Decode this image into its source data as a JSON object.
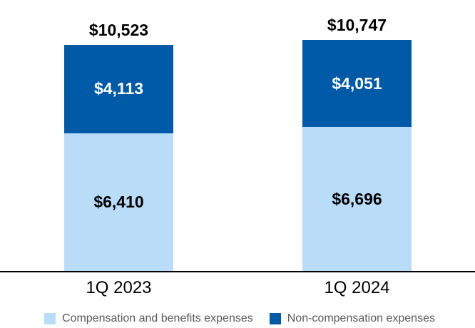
{
  "chart_data": {
    "type": "bar",
    "stacked": true,
    "title": "",
    "xlabel": "",
    "ylabel": "",
    "ylim": [
      0,
      10747
    ],
    "grid": false,
    "legend_position": "bottom",
    "categories": [
      "1Q 2023",
      "1Q 2024"
    ],
    "series": [
      {
        "name": "Compensation and benefits expenses",
        "color": "#B9DDF9",
        "values": [
          6410,
          6696
        ]
      },
      {
        "name": "Non-compensation expenses",
        "color": "#005AA7",
        "values": [
          4113,
          4051
        ]
      }
    ],
    "totals": [
      10523,
      10747
    ],
    "columns": [
      {
        "category": "1Q 2023",
        "total_label": "$10,523",
        "noncomp_label": "$4,113",
        "comp_label": "$6,410"
      },
      {
        "category": "1Q 2024",
        "total_label": "$10,747",
        "noncomp_label": "$4,051",
        "comp_label": "$6,696"
      }
    ]
  },
  "legend": {
    "items": [
      {
        "label": "Compensation and benefits expenses",
        "color": "#B9DDF9"
      },
      {
        "label": "Non-compensation expenses",
        "color": "#005AA7"
      }
    ]
  },
  "colors": {
    "compensation": "#B9DDF9",
    "non_compensation": "#005AA7",
    "axis_line": "#000000",
    "legend_text": "#595959"
  }
}
